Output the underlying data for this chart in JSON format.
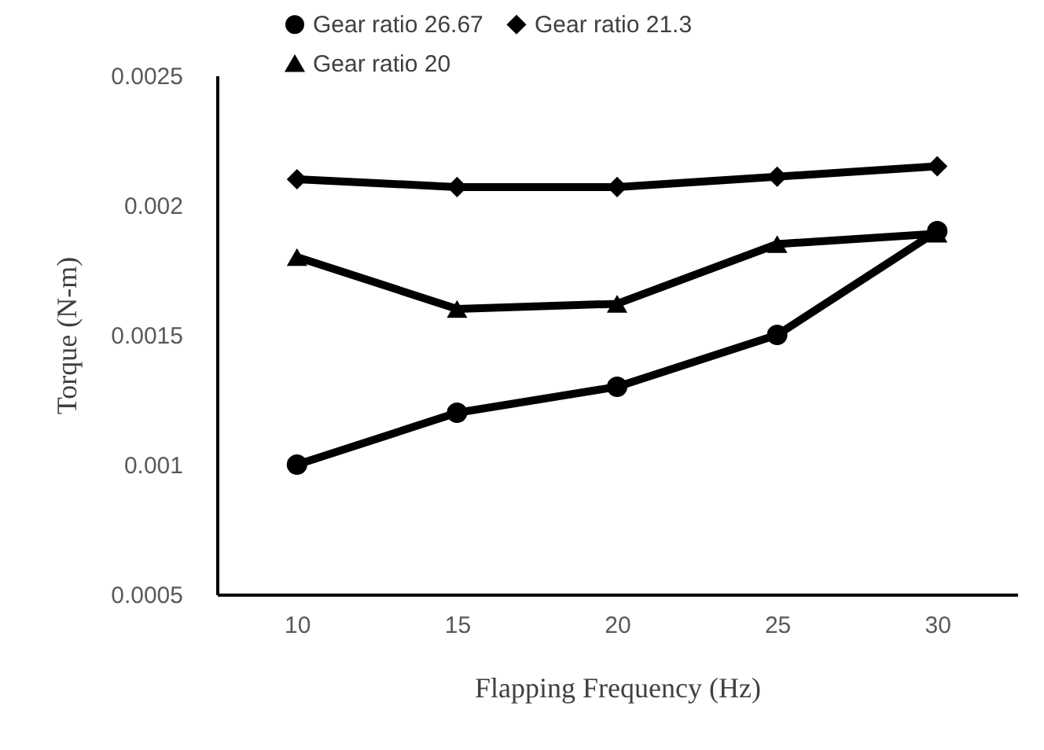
{
  "chart_data": {
    "type": "line",
    "xlabel": "Flapping Frequency (Hz)",
    "ylabel": "Torque (N-m)",
    "categories": [
      "10",
      "15",
      "20",
      "25",
      "30"
    ],
    "series": [
      {
        "name": "Gear ratio 26.67",
        "color": "#000000",
        "marker": "circle",
        "values": [
          0.001,
          0.0012,
          0.0013,
          0.0015,
          0.0019
        ]
      },
      {
        "name": "Gear ratio 21.3",
        "color": "#000000",
        "marker": "diamond",
        "values": [
          0.0021,
          0.00207,
          0.00207,
          0.00211,
          0.00215
        ]
      },
      {
        "name": "Gear ratio 20",
        "color": "#000000",
        "marker": "triangle",
        "values": [
          0.0018,
          0.0016,
          0.00162,
          0.00185,
          0.00189
        ]
      }
    ],
    "ylim": [
      0.0005,
      0.0025
    ],
    "yticks": [
      0.0005,
      0.001,
      0.0015,
      0.002,
      0.0025
    ],
    "grid": false,
    "legend": "top",
    "line_style": "solid"
  }
}
